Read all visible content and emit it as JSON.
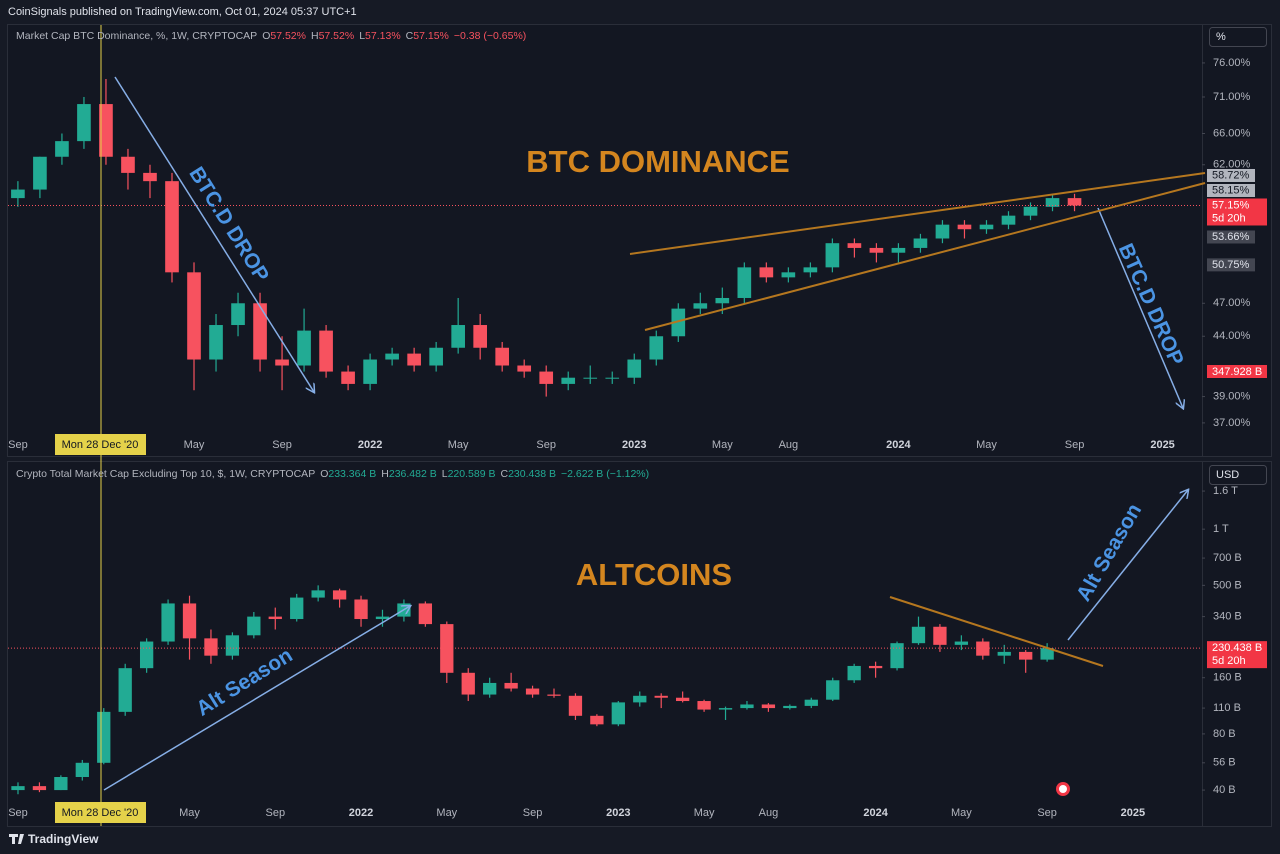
{
  "header": "CoinSignals published on TradingView.com, Oct 01, 2024 05:37 UTC+1",
  "footer": "TradingView",
  "chart_data": [
    {
      "type": "candlestick",
      "title": "Market Cap BTC Dominance, %, 1W, CRYPTOCAP",
      "legend": [
        {
          "key": "O",
          "value": "57.52%"
        },
        {
          "key": "H",
          "value": "57.52%"
        },
        {
          "key": "L",
          "value": "57.13%"
        },
        {
          "key": "C",
          "value": "57.15%"
        }
      ],
      "change": "−0.38 (−0.65%)",
      "unit_button": "%",
      "crosshair_label": "Mon 28 Dec '20",
      "annotations": [
        "BTC DOMINANCE",
        "BTC.D DROP",
        "BTC.D DROP"
      ],
      "up_color": "#22ab94",
      "down_color": "#f7525f",
      "log_scale": true,
      "x": [
        0,
        1,
        2,
        3,
        4,
        5,
        6,
        7,
        8,
        9,
        10,
        11,
        12,
        13,
        14,
        15,
        16,
        17,
        18,
        19,
        20,
        21,
        22,
        23,
        24,
        25,
        26,
        27,
        28,
        29,
        30,
        31,
        32,
        33,
        34,
        35,
        36,
        37,
        38,
        39,
        40,
        41,
        42,
        43,
        44,
        45,
        46,
        47,
        48
      ],
      "open": [
        58,
        59,
        63,
        65,
        70,
        63,
        61,
        60,
        50,
        42,
        45,
        47,
        42,
        41.5,
        44.5,
        41,
        40,
        42,
        42.5,
        41.5,
        43,
        45,
        43,
        41.5,
        41,
        40,
        40.5,
        40.5,
        40.5,
        42,
        44,
        46.5,
        47,
        47.5,
        50.5,
        49.5,
        50,
        50.5,
        53,
        52.5,
        52,
        52.5,
        53.5,
        55,
        54.5,
        55,
        56,
        57,
        58
      ],
      "high": [
        60,
        63,
        66,
        71,
        73.6,
        64,
        62,
        61,
        51,
        46,
        48,
        48,
        44,
        46.5,
        45,
        41.5,
        42.5,
        43,
        43,
        43.5,
        47.5,
        46,
        43.5,
        42,
        41.5,
        41,
        41.5,
        41,
        42.5,
        44.5,
        47,
        48,
        48.5,
        51,
        51,
        50.5,
        51,
        53.5,
        53.5,
        53,
        53,
        54,
        55.5,
        55.5,
        55.5,
        56.5,
        57.5,
        58.5,
        58.5
      ],
      "low": [
        57,
        58,
        62,
        64,
        62,
        59,
        58,
        49,
        39.5,
        41,
        44,
        41,
        39.5,
        41,
        40.5,
        39.5,
        39.5,
        41.5,
        41,
        41,
        42.5,
        42,
        41,
        40.5,
        39,
        39.5,
        40,
        40,
        40,
        41.5,
        43.5,
        46,
        46,
        47,
        49,
        49,
        49.5,
        50,
        51.5,
        51,
        51,
        52,
        53,
        53.5,
        54,
        54.5,
        55.5,
        56.5,
        56.5
      ],
      "close": [
        59,
        63,
        65,
        70,
        63,
        61,
        60,
        50,
        42,
        45,
        47,
        42,
        41.5,
        44.5,
        41,
        40,
        42,
        42.5,
        41.5,
        43,
        45,
        43,
        41.5,
        41,
        40,
        40.5,
        40.5,
        40.5,
        42,
        44,
        46.5,
        47,
        47.5,
        50.5,
        49.5,
        50,
        50.5,
        53,
        52.5,
        52,
        52.5,
        53.5,
        55,
        54.5,
        55,
        56,
        57,
        58,
        57.15
      ],
      "close_label": "57.15%",
      "countdown": "5d 20h",
      "xlim": [
        -0.45,
        53.7
      ],
      "ylim": [
        34.7,
        81.5
      ],
      "xticks": [
        {
          "value": 0,
          "label": "Sep"
        },
        {
          "value": 8,
          "label": "May"
        },
        {
          "value": 12,
          "label": "Sep"
        },
        {
          "value": 16,
          "label": "2022"
        },
        {
          "value": 20,
          "label": "May"
        },
        {
          "value": 24,
          "label": "Sep"
        },
        {
          "value": 28,
          "label": "2023"
        },
        {
          "value": 32,
          "label": "May"
        },
        {
          "value": 35,
          "label": "Aug"
        },
        {
          "value": 40,
          "label": "2024"
        },
        {
          "value": 44,
          "label": "May"
        },
        {
          "value": 48,
          "label": "Sep"
        },
        {
          "value": 52,
          "label": "2025"
        }
      ],
      "yticks": [
        {
          "value": 76,
          "label": "76.00%"
        },
        {
          "value": 71,
          "label": "71.00%"
        },
        {
          "value": 66,
          "label": "66.00%"
        },
        {
          "value": 62,
          "label": "62.00%"
        },
        {
          "value": 47,
          "label": "47.00%"
        },
        {
          "value": 44,
          "label": "44.00%"
        },
        {
          "value": 39,
          "label": "39.00%"
        },
        {
          "value": 37,
          "label": "37.00%"
        }
      ],
      "price_tags": [
        {
          "value": 58.72,
          "label": "58.72%"
        },
        {
          "value": 58.15,
          "label": "58.15%"
        },
        {
          "value": 53.66,
          "label": "53.66%"
        },
        {
          "value": 50.75,
          "label": "50.75%"
        }
      ],
      "extra_tag": "347.928 B"
    },
    {
      "type": "candlestick",
      "title": "Crypto Total Market Cap Excluding Top 10, $, 1W, CRYPTOCAP",
      "legend": [
        {
          "key": "O",
          "value": "233.364 B"
        },
        {
          "key": "H",
          "value": "236.482 B"
        },
        {
          "key": "L",
          "value": "220.589 B"
        },
        {
          "key": "C",
          "value": "230.438 B"
        }
      ],
      "change": "−2.622 B (−1.12%)",
      "unit_button": "USD",
      "crosshair_label": "Mon 28 Dec '20",
      "annotations": [
        "ALTCOINS",
        "Alt Season",
        "Alt Season"
      ],
      "up_color": "#22ab94",
      "down_color": "#f7525f",
      "log_scale": true,
      "x": [
        0,
        1,
        2,
        3,
        4,
        5,
        6,
        7,
        8,
        9,
        10,
        11,
        12,
        13,
        14,
        15,
        16,
        17,
        18,
        19,
        20,
        21,
        22,
        23,
        24,
        25,
        26,
        27,
        28,
        29,
        30,
        31,
        32,
        33,
        34,
        35,
        36,
        37,
        38,
        39,
        40,
        41,
        42,
        43,
        44,
        45,
        46,
        47,
        48
      ],
      "open": [
        40,
        42,
        40,
        47,
        56,
        105,
        180,
        250,
        400,
        260,
        210,
        270,
        340,
        330,
        430,
        470,
        420,
        330,
        340,
        400,
        310,
        170,
        130,
        150,
        140,
        130,
        128,
        100,
        90,
        118,
        128,
        125,
        120,
        108,
        110,
        115,
        110,
        113,
        122,
        155,
        185,
        180,
        245,
        300,
        240,
        250,
        210,
        220,
        200
      ],
      "high": [
        44,
        44,
        48,
        58,
        110,
        190,
        260,
        420,
        440,
        290,
        280,
        360,
        380,
        450,
        500,
        480,
        440,
        370,
        420,
        410,
        320,
        180,
        160,
        170,
        145,
        140,
        132,
        102,
        120,
        135,
        132,
        135,
        122,
        112,
        120,
        117,
        115,
        125,
        160,
        190,
        195,
        250,
        340,
        310,
        270,
        260,
        240,
        225,
        245
      ],
      "low": [
        38,
        39,
        40,
        45,
        55,
        100,
        170,
        240,
        200,
        190,
        200,
        260,
        290,
        320,
        410,
        380,
        300,
        300,
        320,
        300,
        150,
        120,
        125,
        135,
        125,
        125,
        95,
        88,
        88,
        112,
        110,
        118,
        105,
        95,
        108,
        105,
        108,
        110,
        120,
        150,
        160,
        175,
        240,
        220,
        225,
        200,
        190,
        170,
        195
      ],
      "close": [
        42,
        40,
        47,
        56,
        105,
        180,
        250,
        400,
        260,
        210,
        270,
        340,
        330,
        430,
        470,
        420,
        330,
        340,
        400,
        310,
        170,
        130,
        150,
        140,
        130,
        128,
        100,
        90,
        118,
        128,
        125,
        120,
        108,
        110,
        115,
        110,
        113,
        122,
        155,
        185,
        180,
        245,
        300,
        240,
        250,
        210,
        220,
        200,
        230.438
      ],
      "close_label": "230.438 B",
      "countdown": "5d 20h",
      "xlim": [
        -0.466,
        55.13
      ],
      "ylim": [
        26,
        2207
      ],
      "xticks": [
        {
          "value": 0,
          "label": "Sep"
        },
        {
          "value": 8,
          "label": "May"
        },
        {
          "value": 12,
          "label": "Sep"
        },
        {
          "value": 16,
          "label": "2022"
        },
        {
          "value": 20,
          "label": "May"
        },
        {
          "value": 24,
          "label": "Sep"
        },
        {
          "value": 28,
          "label": "2023"
        },
        {
          "value": 32,
          "label": "May"
        },
        {
          "value": 35,
          "label": "Aug"
        },
        {
          "value": 40,
          "label": "2024"
        },
        {
          "value": 44,
          "label": "May"
        },
        {
          "value": 48,
          "label": "Sep"
        },
        {
          "value": 52,
          "label": "2025"
        }
      ],
      "yticks": [
        {
          "value": 1600,
          "label": "1.6 T"
        },
        {
          "value": 1000,
          "label": "1 T"
        },
        {
          "value": 700,
          "label": "700 B"
        },
        {
          "value": 500,
          "label": "500 B"
        },
        {
          "value": 340,
          "label": "340 B"
        },
        {
          "value": 160,
          "label": "160 B"
        },
        {
          "value": 110,
          "label": "110 B"
        },
        {
          "value": 80,
          "label": "80 B"
        },
        {
          "value": 56,
          "label": "56 B"
        },
        {
          "value": 40,
          "label": "40 B"
        }
      ],
      "price_tags": []
    }
  ]
}
